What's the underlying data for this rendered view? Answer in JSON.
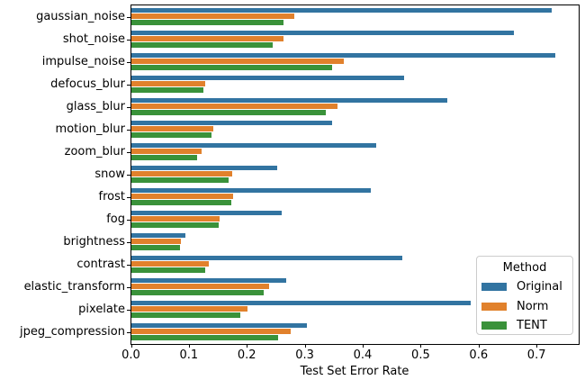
{
  "figure": {
    "background": "#ffffff",
    "text_color": "#000000",
    "spine_color": "#000000"
  },
  "chart_data": {
    "type": "bar",
    "orientation": "horizontal",
    "title": "",
    "xlabel": "Test Set Error Rate",
    "ylabel": "",
    "grid": false,
    "xlim": [
      0,
      0.772
    ],
    "xticks": [
      0.0,
      0.1,
      0.2,
      0.3,
      0.4,
      0.5,
      0.6,
      0.7
    ],
    "categories": [
      "gaussian_noise",
      "shot_noise",
      "impulse_noise",
      "defocus_blur",
      "glass_blur",
      "motion_blur",
      "zoom_blur",
      "snow",
      "frost",
      "fog",
      "brightness",
      "contrast",
      "elastic_transform",
      "pixelate",
      "jpeg_compression"
    ],
    "series": [
      {
        "name": "Original",
        "color": "#3274a1",
        "values": [
          0.725,
          0.66,
          0.731,
          0.471,
          0.545,
          0.347,
          0.422,
          0.251,
          0.413,
          0.26,
          0.093,
          0.468,
          0.267,
          0.585,
          0.303
        ]
      },
      {
        "name": "Norm",
        "color": "#e1812c",
        "values": [
          0.281,
          0.262,
          0.367,
          0.128,
          0.356,
          0.142,
          0.121,
          0.174,
          0.176,
          0.153,
          0.086,
          0.134,
          0.238,
          0.201,
          0.275
        ]
      },
      {
        "name": "TENT",
        "color": "#3a923a",
        "values": [
          0.262,
          0.244,
          0.347,
          0.125,
          0.335,
          0.139,
          0.114,
          0.167,
          0.173,
          0.15,
          0.084,
          0.127,
          0.229,
          0.188,
          0.253
        ]
      }
    ],
    "legend": {
      "title": "Method",
      "position": "lower right",
      "border_color": "#cccccc"
    }
  }
}
